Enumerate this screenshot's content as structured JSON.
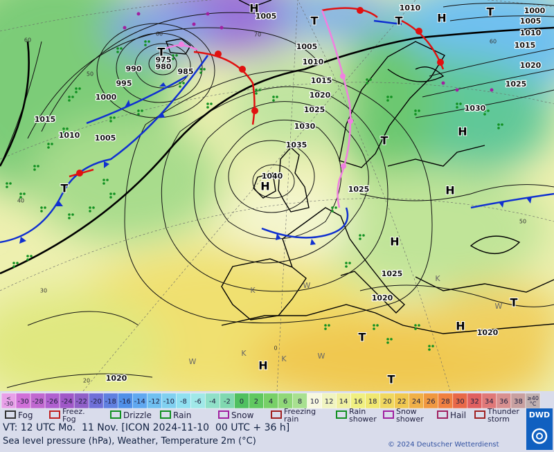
{
  "map": {
    "isobar_labels": [
      1005,
      1010,
      1000,
      1005,
      1010,
      1015,
      1005,
      990,
      995,
      1000,
      980,
      975,
      985,
      1010,
      1015,
      1020,
      1025,
      1030,
      1035,
      1040,
      1015,
      1010,
      1005,
      1020,
      1025,
      1030,
      1025,
      1025,
      1020,
      1020,
      1020
    ],
    "graticule_labels": [
      60,
      50,
      60,
      70,
      40,
      30,
      20,
      0,
      60,
      50
    ],
    "pressure_centers": [
      "H",
      "T",
      "T",
      "H",
      "T",
      "T",
      "H",
      "T",
      "H",
      "H",
      "H",
      "T",
      "T",
      "H",
      "T",
      "H",
      "T"
    ],
    "weather_letters": [
      "K",
      "K",
      "K",
      "W",
      "W",
      "W",
      "K",
      "W"
    ]
  },
  "legend": {
    "low_label": [
      "<",
      "-30"
    ],
    "low_color": "#e8a0e8",
    "values": [
      -30,
      -28,
      -26,
      -24,
      -22,
      -20,
      -18,
      -16,
      -14,
      -12,
      -10,
      -8,
      -6,
      -4,
      -2,
      0,
      2,
      4,
      6,
      8,
      10,
      12,
      14,
      16,
      18,
      20,
      22,
      24,
      26,
      28,
      30,
      32,
      34,
      36,
      38
    ],
    "colors": [
      "#d070d8",
      "#c068d0",
      "#b060d0",
      "#a058c8",
      "#9060c8",
      "#7070d8",
      "#6080e0",
      "#5090e8",
      "#60a8f0",
      "#70c0f0",
      "#80d0f0",
      "#90e0f0",
      "#a0e8e8",
      "#90e0c8",
      "#80d8b0",
      "#50c060",
      "#60c860",
      "#78d068",
      "#90d878",
      "#a8e090",
      "#f8f8e0",
      "#f0f4c0",
      "#f0f0a0",
      "#f0f080",
      "#f0e870",
      "#f0d860",
      "#f0c850",
      "#f0b048",
      "#f09840",
      "#f08040",
      "#e86848",
      "#e06060",
      "#e07878",
      "#d89090",
      "#c8a0a0"
    ],
    "high_label": [
      "≥40",
      "°C"
    ],
    "high_color": "#c0b0b0",
    "symbols": [
      {
        "lines": [
          "Fog"
        ]
      },
      {
        "lines": [
          "Freez.",
          "Fog"
        ]
      },
      {
        "lines": [
          "Drizzle"
        ]
      },
      {
        "lines": [
          "Rain"
        ]
      },
      {
        "lines": [
          "Snow"
        ]
      },
      {
        "lines": [
          "Freezing",
          "rain"
        ]
      },
      {
        "lines": [
          "Rain",
          "shower"
        ]
      },
      {
        "lines": [
          "Snow",
          "shower"
        ]
      },
      {
        "lines": [
          "Hail"
        ]
      },
      {
        "lines": [
          "Thunder",
          "storm"
        ]
      }
    ]
  },
  "footer": {
    "valid_time": "VT: 12 UTC Mo.  11 Nov. [ICON 2024-11-10  00 UTC + 36 h]",
    "description": "Sea level pressure (hPa), Weather, Temperature 2m (°C)",
    "copyright": "© 2024 Deutscher Wetterdienst",
    "logo": "DWD"
  }
}
